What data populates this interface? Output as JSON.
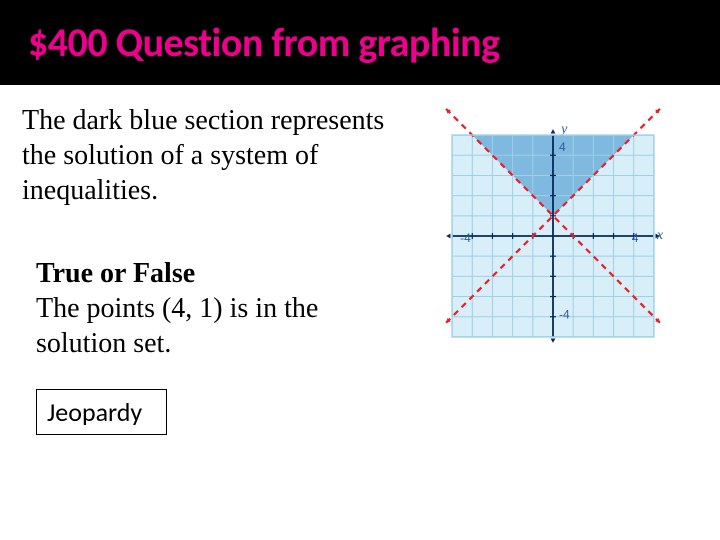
{
  "title": "$400 Question from graphing",
  "prompt_text": "The dark blue section represents the solution of a system of inequalities.",
  "question_bold": "True or False",
  "question_rest": "The points (4, 1) is in the solution set.",
  "jeopardy_label": "Jeopardy",
  "graph": {
    "type": "inequality-region",
    "view": {
      "xmin": -5.5,
      "xmax": 5.5,
      "ymin": -5.5,
      "ymax": 5.5
    },
    "grid_step": 1,
    "grid_color": "#9ed0e6",
    "background_color": "#d8eef8",
    "solution_fill": "#7fb9e0",
    "line_color": "#ed1c24",
    "line_width": 2.2,
    "line_dash": "6,5",
    "axis_color": "#06285a",
    "axis_width": 1.8,
    "tick_labels": [
      {
        "text": "4",
        "x": 0.3,
        "y": 4.2
      },
      {
        "text": "-4",
        "x": -4.6,
        "y": -0.3
      },
      {
        "text": "4",
        "x": 3.9,
        "y": -0.3
      },
      {
        "text": "-4",
        "x": 0.3,
        "y": -4.1
      }
    ],
    "axis_labels": {
      "x": "x",
      "y": "y"
    },
    "tick_label_fontsize": 12,
    "tick_label_color": "#2b5ca0",
    "axis_label_fontsize": 14,
    "axis_label_color": "#2b5ca0",
    "lines": [
      {
        "slope": 1,
        "intercept": 1,
        "shade_side": "above"
      },
      {
        "slope": -1,
        "intercept": 1,
        "shade_side": "above"
      }
    ],
    "arrow_color": "#ed1c24"
  }
}
